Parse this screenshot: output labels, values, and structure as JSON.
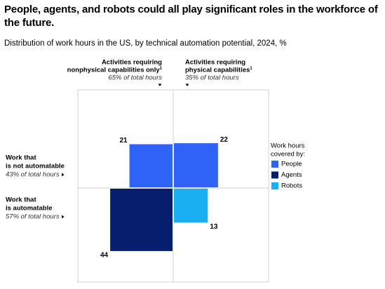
{
  "chart_data": {
    "type": "quadrant-squares",
    "title": "People, agents, and robots could all play significant roles in the workforce of the future.",
    "subtitle": "Distribution of work hours in the US, by technical automation potential, 2024, %",
    "columns": [
      {
        "label_lines": [
          "Activities requiring",
          "nonphysical capabilities only"
        ],
        "footnote": "1",
        "note": "65% of total hours"
      },
      {
        "label_lines": [
          "Activities requiring",
          "physical capabilities"
        ],
        "footnote": "1",
        "note": "35% of total hours"
      }
    ],
    "rows": [
      {
        "label_lines": [
          "Work that",
          "is not automatable"
        ],
        "note": "43% of total hours"
      },
      {
        "label_lines": [
          "Work that",
          "is automatable"
        ],
        "note": "57% of total hours"
      }
    ],
    "legend_title_lines": [
      "Work hours",
      "covered by:"
    ],
    "series": [
      {
        "name": "People",
        "color": "#2f62f6",
        "values": [
          21,
          22,
          null,
          null
        ]
      },
      {
        "name": "Agents",
        "color": "#071d6e",
        "values": [
          null,
          null,
          44,
          null
        ]
      },
      {
        "name": "Robots",
        "color": "#1aaff0",
        "values": [
          null,
          null,
          null,
          13
        ]
      }
    ]
  }
}
